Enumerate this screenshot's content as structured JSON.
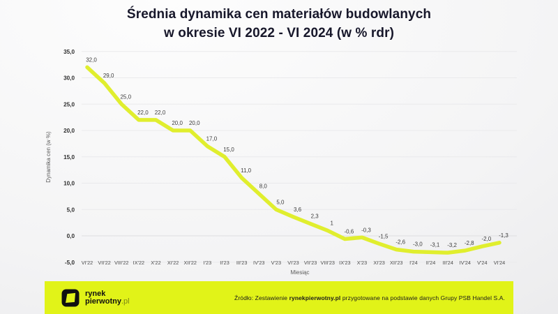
{
  "header": {
    "title_line1": "Średnia dynamika cen materiałów budowlanych",
    "title_line2": "w okresie VI 2022 - VI 2024 (w % rdr)"
  },
  "chart_data": {
    "type": "line",
    "title": "Średnia dynamika cen materiałów budowlanych w okresie VI 2022 - VI 2024 (w % rdr)",
    "xlabel": "Miesiąc",
    "ylabel": "Dynamika cen (w %)",
    "ylim": [
      -5,
      35
    ],
    "grid": true,
    "legend": "none",
    "line_color": "#e0ee2e",
    "categories": [
      "VI'22",
      "VII'22",
      "VIII'22",
      "IX'22",
      "X'22",
      "XI'22",
      "XII'22",
      "I'23",
      "II'23",
      "III'23",
      "IV'23",
      "V'23",
      "VI'23",
      "VII'23",
      "VIII'23",
      "IX'23",
      "X'23",
      "XI'23",
      "XII'23",
      "I'24",
      "II'24",
      "III'24",
      "IV'24",
      "V'24",
      "VI'24"
    ],
    "values": [
      32.0,
      29.0,
      25.0,
      22.0,
      22.0,
      20.0,
      20.0,
      17.0,
      15.0,
      11.0,
      8.0,
      5.0,
      3.6,
      2.3,
      1,
      -0.6,
      -0.3,
      -1.5,
      -2.6,
      -3.0,
      -3.1,
      -3.2,
      -2.8,
      -2.0,
      -1.3
    ],
    "point_labels": [
      "32,0",
      "29,0",
      "25,0",
      "22,0",
      "22,0",
      "20,0",
      "20,0",
      "17,0",
      "15,0",
      "11,0",
      "8,0",
      "5,0",
      "3,6",
      "2,3",
      "1",
      "-0,6",
      "-0,3",
      "-1,5",
      "-2,6",
      "-3,0",
      "-3,1",
      "-3,2",
      "-2,8",
      "-2,0",
      "-1,3"
    ],
    "y_ticks": [
      35,
      30,
      25,
      20,
      15,
      10,
      5,
      0,
      -5
    ],
    "y_tick_labels": [
      "35,0",
      "30,0",
      "25,0",
      "20,0",
      "15,0",
      "10,0",
      "5,0",
      "0,0",
      "-5,0"
    ]
  },
  "footer": {
    "bar_color": "#e1f318",
    "logo_line1": "rynek",
    "logo_line2_bold": "pierwotny",
    "logo_line2_suffix": ".pl",
    "source_prefix": "Źródło: Zestawienie ",
    "source_bold": "rynekpierwotny.pl",
    "source_suffix": " przygotowane na podstawie danych Grupy PSB Handel S.A."
  }
}
